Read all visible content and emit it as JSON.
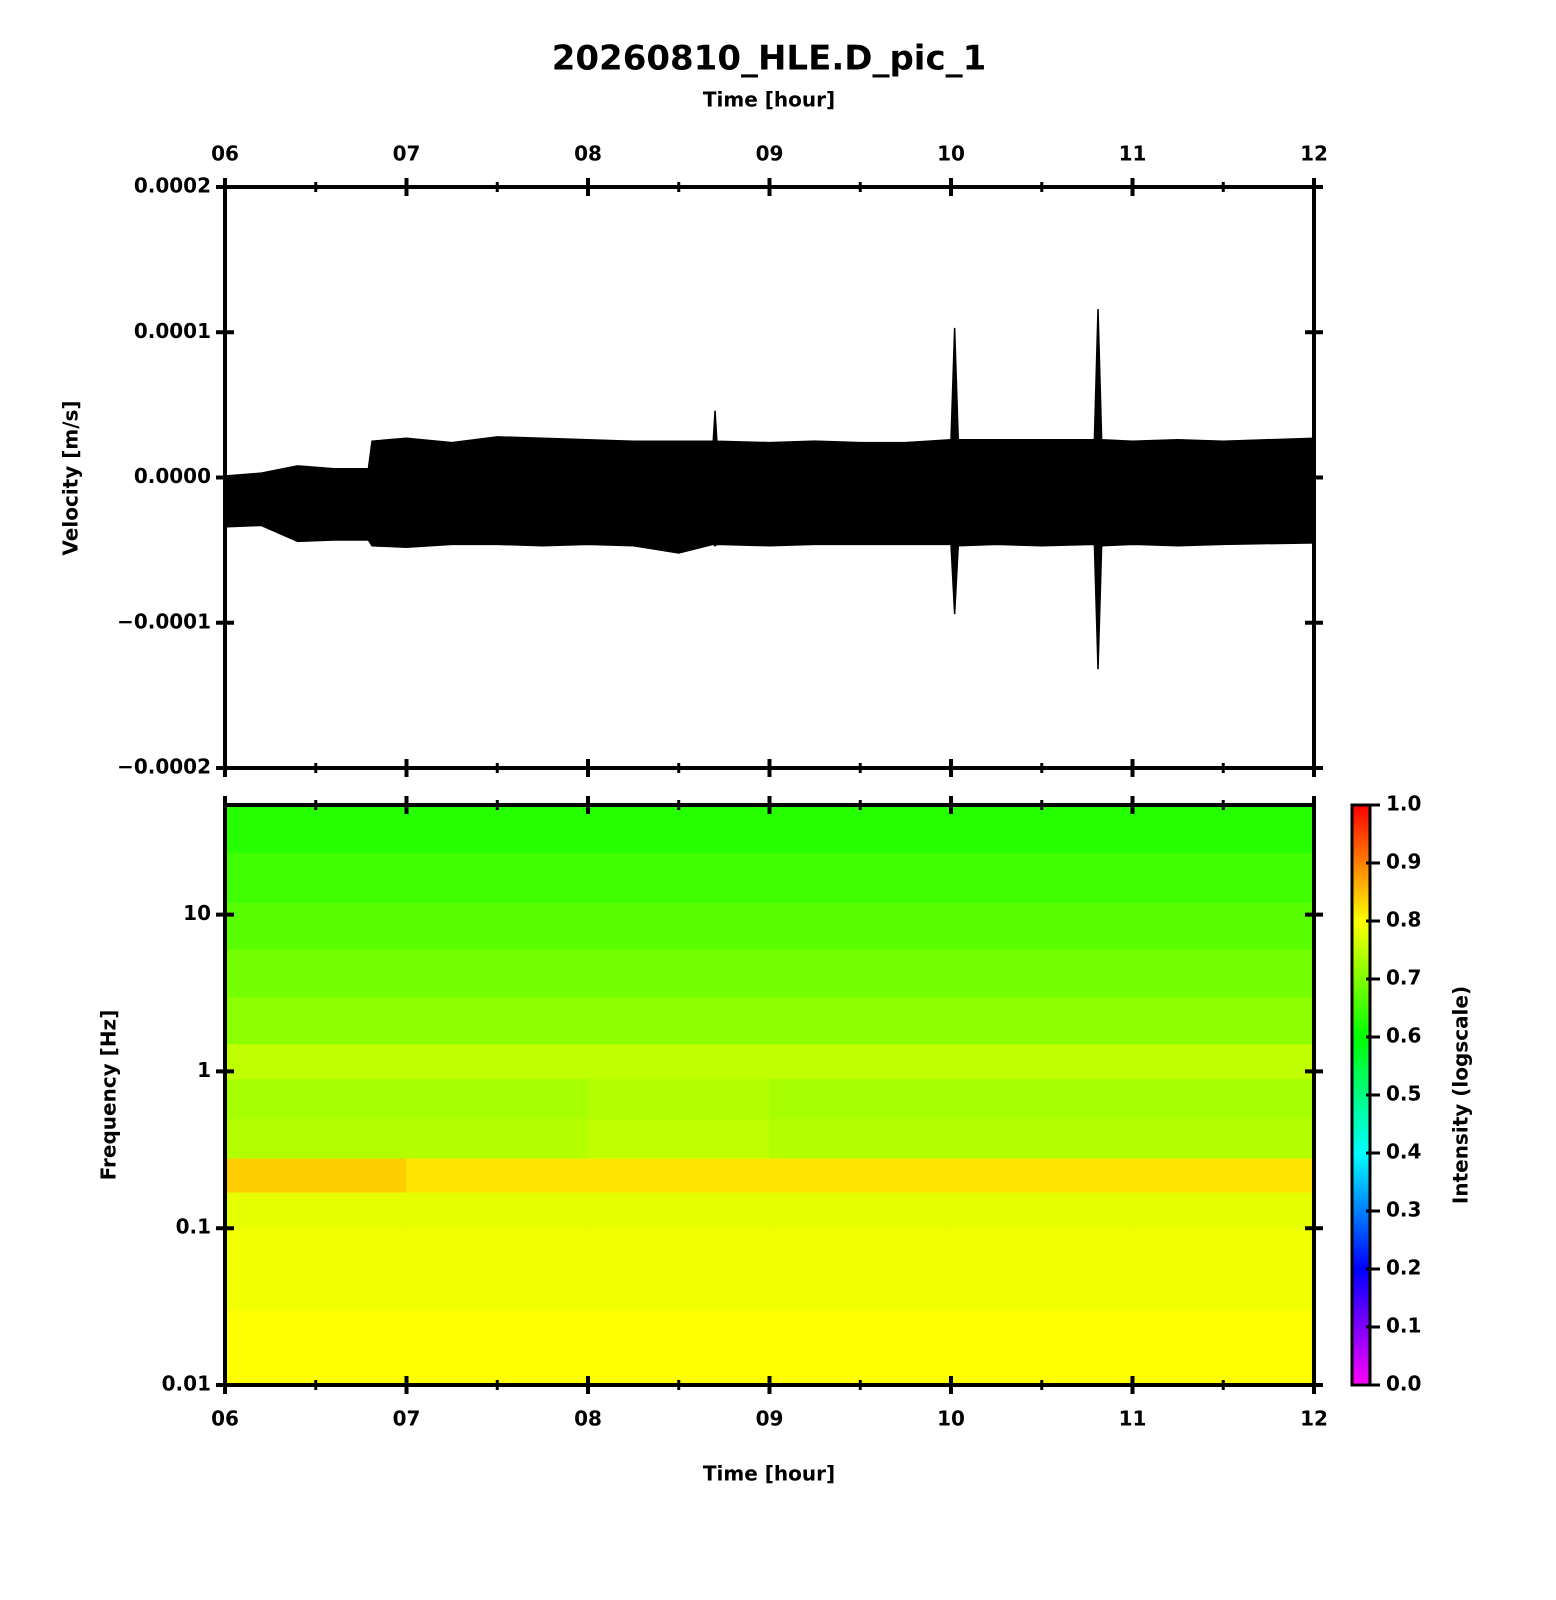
{
  "chart_data": [
    {
      "type": "area",
      "title": "20260810_HLE.D_pic_1",
      "xlabel": "Time [hour]",
      "ylabel": "Velocity [m/s]",
      "color": "#000000",
      "x": [
        6.0,
        6.2,
        6.4,
        6.6,
        6.79,
        6.81,
        7.0,
        7.25,
        7.5,
        7.75,
        8.0,
        8.25,
        8.5,
        8.69,
        8.7,
        8.71,
        9.0,
        9.25,
        9.5,
        9.75,
        10.0,
        10.02,
        10.04,
        10.25,
        10.5,
        10.79,
        10.81,
        10.83,
        11.0,
        11.25,
        11.5,
        12.0
      ],
      "max": [
        1e-06,
        3e-06,
        8e-06,
        6e-06,
        6e-06,
        2.5e-05,
        2.7e-05,
        2.4e-05,
        2.8e-05,
        2.7e-05,
        2.6e-05,
        2.5e-05,
        2.5e-05,
        2.5e-05,
        4.6e-05,
        2.5e-05,
        2.4e-05,
        2.5e-05,
        2.4e-05,
        2.4e-05,
        2.6e-05,
        0.000103,
        2.6e-05,
        2.6e-05,
        2.6e-05,
        2.6e-05,
        0.000116,
        2.6e-05,
        2.5e-05,
        2.6e-05,
        2.5e-05,
        2.7e-05
      ],
      "min": [
        -3.4e-05,
        -3.3e-05,
        -4.4e-05,
        -4.3e-05,
        -4.3e-05,
        -4.7e-05,
        -4.8e-05,
        -4.6e-05,
        -4.6e-05,
        -4.7e-05,
        -4.6e-05,
        -4.7e-05,
        -5.2e-05,
        -4.6e-05,
        -4.7e-05,
        -4.6e-05,
        -4.7e-05,
        -4.6e-05,
        -4.6e-05,
        -4.6e-05,
        -4.6e-05,
        -9.4e-05,
        -4.7e-05,
        -4.6e-05,
        -4.7e-05,
        -4.6e-05,
        -0.000132,
        -4.7e-05,
        -4.6e-05,
        -4.7e-05,
        -4.6e-05,
        -4.5e-05
      ],
      "xlim": [
        6,
        12
      ],
      "xticks": [
        {
          "value": 6,
          "label": "06"
        },
        {
          "value": 7,
          "label": "07"
        },
        {
          "value": 8,
          "label": "08"
        },
        {
          "value": 9,
          "label": "09"
        },
        {
          "value": 10,
          "label": "10"
        },
        {
          "value": 11,
          "label": "11"
        },
        {
          "value": 12,
          "label": "12"
        }
      ],
      "xminorticks": [
        6.5,
        7.5,
        8.5,
        9.5,
        10.5,
        11.5
      ],
      "ylim": [
        -0.0002,
        0.0002
      ],
      "yticks": [
        {
          "value": -0.0002,
          "label": "−0.0002"
        },
        {
          "value": -0.0001,
          "label": "−0.0001"
        },
        {
          "value": 0,
          "label": "0.0000"
        },
        0.0001,
        0.0002
      ]
    },
    {
      "type": "heatmap",
      "xlabel": "Time [hour]",
      "ylabel": "Frequency [Hz]",
      "colorbar_label": "Intensity (logscale)",
      "log_y": true,
      "x_edges": [
        6,
        7,
        8,
        9,
        10,
        11,
        12
      ],
      "freq_edges": [
        0.01,
        0.03,
        0.1,
        0.17,
        0.28,
        0.5,
        0.9,
        1.5,
        3,
        6,
        12,
        25,
        50
      ],
      "values": [
        [
          0.8,
          0.8,
          0.8,
          0.8,
          0.8,
          0.8
        ],
        [
          0.79,
          0.79,
          0.79,
          0.79,
          0.79,
          0.79
        ],
        [
          0.78,
          0.78,
          0.78,
          0.78,
          0.78,
          0.78
        ],
        [
          0.84,
          0.82,
          0.82,
          0.82,
          0.82,
          0.82
        ],
        [
          0.74,
          0.74,
          0.75,
          0.74,
          0.74,
          0.74
        ],
        [
          0.73,
          0.73,
          0.74,
          0.73,
          0.73,
          0.73
        ],
        [
          0.75,
          0.75,
          0.75,
          0.75,
          0.75,
          0.75
        ],
        [
          0.71,
          0.71,
          0.71,
          0.71,
          0.71,
          0.71
        ],
        [
          0.69,
          0.69,
          0.69,
          0.69,
          0.69,
          0.69
        ],
        [
          0.67,
          0.67,
          0.67,
          0.67,
          0.67,
          0.67
        ],
        [
          0.65,
          0.65,
          0.65,
          0.65,
          0.65,
          0.65
        ],
        [
          0.63,
          0.63,
          0.63,
          0.63,
          0.63,
          0.63
        ]
      ],
      "colormap": [
        "#ff00ff",
        "#0000ff",
        "#00ffff",
        "#00ff00",
        "#ffff00",
        "#ff0000"
      ],
      "clim": [
        0,
        1
      ],
      "cticks": [
        {
          "value": 0,
          "label": "0.0"
        },
        0.1,
        0.2,
        0.3,
        0.4,
        0.5,
        0.6,
        0.7,
        0.8,
        0.9,
        {
          "value": 1,
          "label": "1.0"
        }
      ],
      "xlim": [
        6,
        12
      ],
      "xticks": [
        {
          "value": 6,
          "label": "06"
        },
        {
          "value": 7,
          "label": "07"
        },
        {
          "value": 8,
          "label": "08"
        },
        {
          "value": 9,
          "label": "09"
        },
        {
          "value": 10,
          "label": "10"
        },
        {
          "value": 11,
          "label": "11"
        },
        {
          "value": 12,
          "label": "12"
        }
      ],
      "xminorticks": [
        6.5,
        7.5,
        8.5,
        9.5,
        10.5,
        11.5
      ],
      "ylim": [
        0.01,
        50
      ],
      "yticks": [
        0.01,
        0.1,
        1,
        10
      ]
    }
  ]
}
